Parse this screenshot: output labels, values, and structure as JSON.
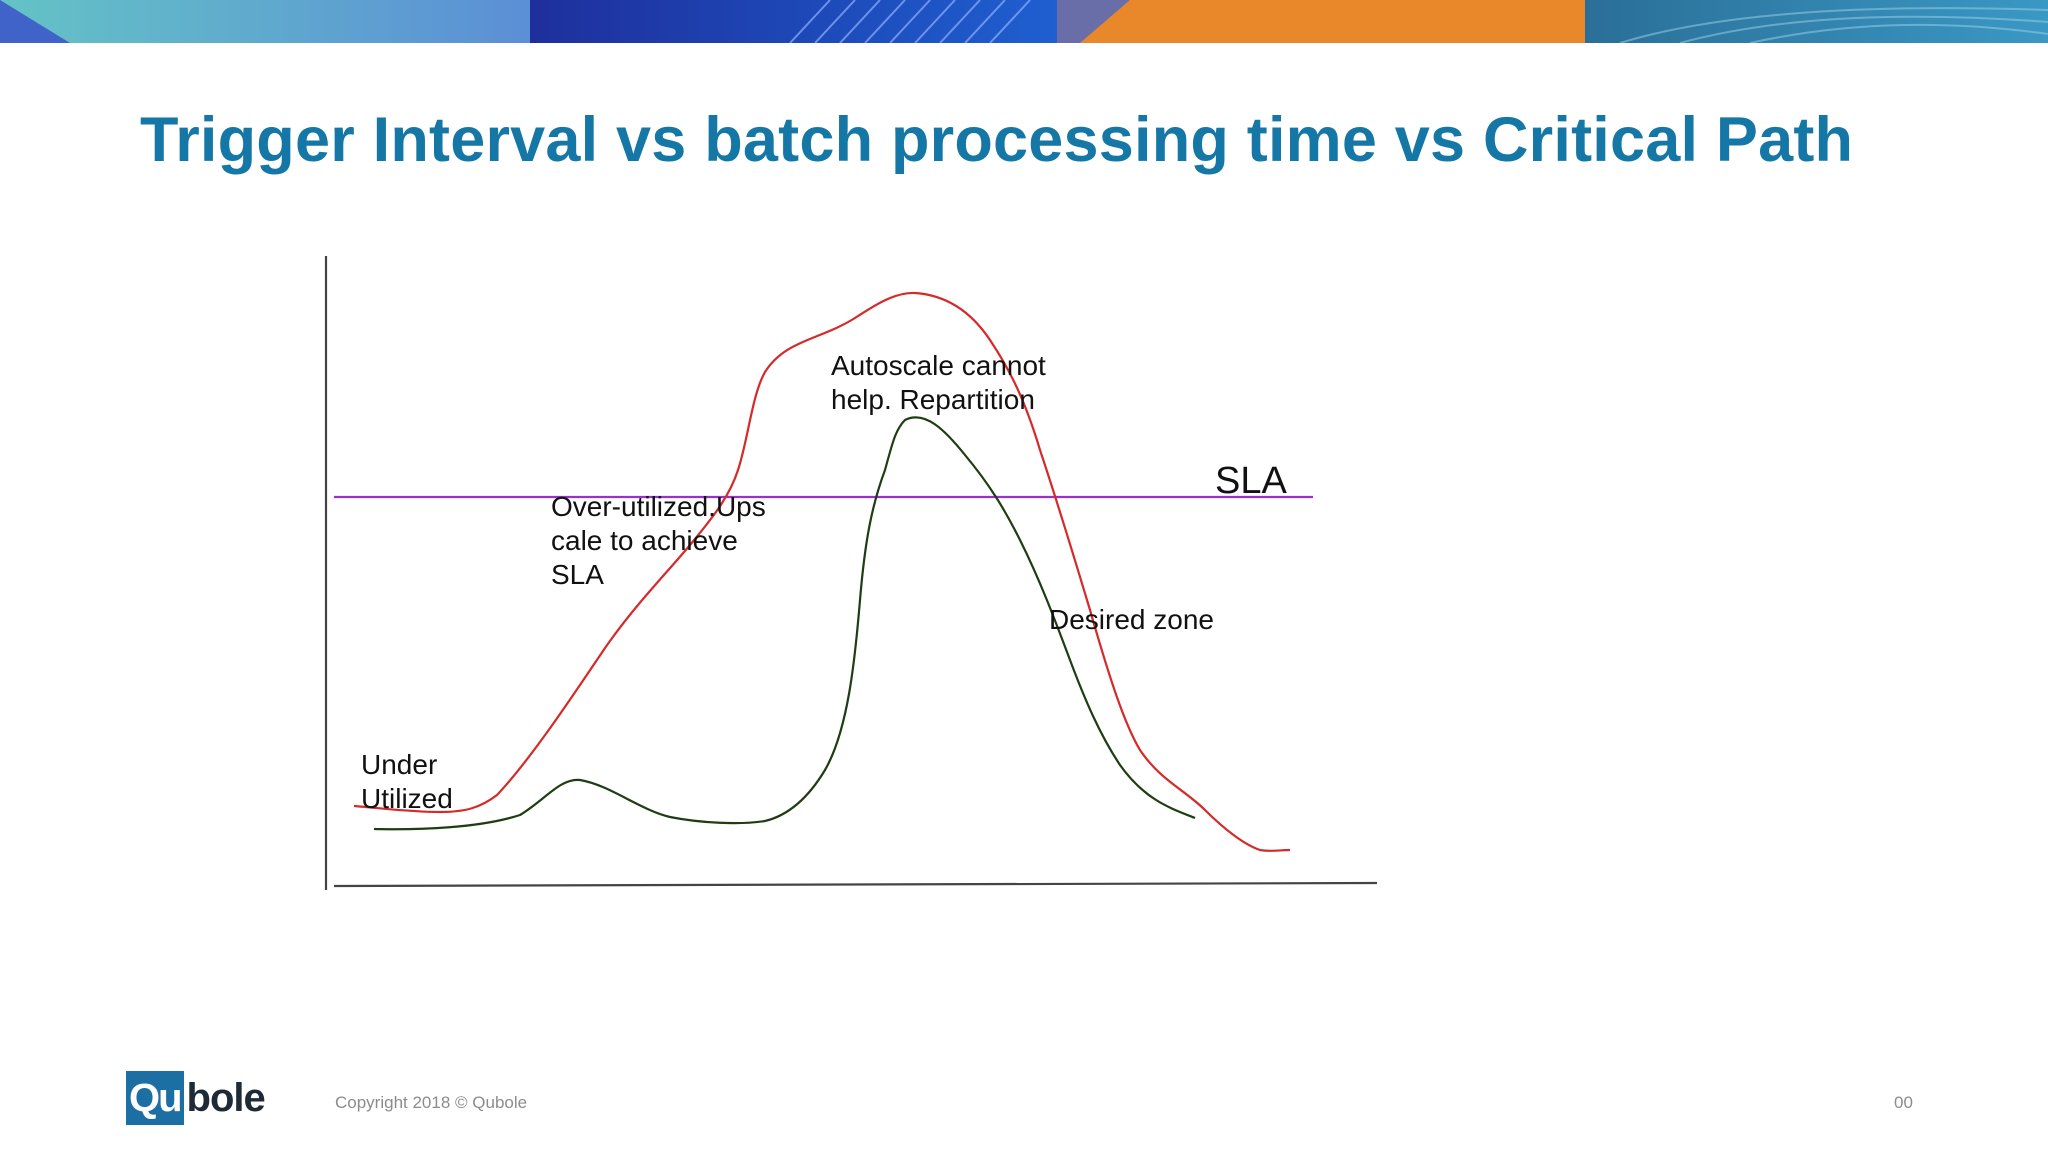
{
  "slide": {
    "title": "Trigger Interval vs batch processing time vs Critical Path"
  },
  "diagram": {
    "sla_label": "SLA",
    "annotations": {
      "under_utilized": [
        "Under",
        "Utilized"
      ],
      "over_utilized": [
        "Over-utilized.Ups",
        "cale to achieve",
        "SLA"
      ],
      "autoscale": [
        "Autoscale cannot",
        "help. Repartition"
      ],
      "desired_zone": "Desired zone"
    },
    "colors": {
      "red_curve": "#d42a2a",
      "green_curve": "#1f3d12",
      "sla_line": "#9b2fd0",
      "axes": "#444444"
    }
  },
  "footer": {
    "logo_left": "Qu",
    "logo_right": "bole",
    "copyright": "Copyright 2018  © Qubole",
    "page_number": "00"
  },
  "banner_colors": [
    "#5fb4c9",
    "#2a3fb8",
    "#e8882a",
    "#2d7fa8"
  ]
}
